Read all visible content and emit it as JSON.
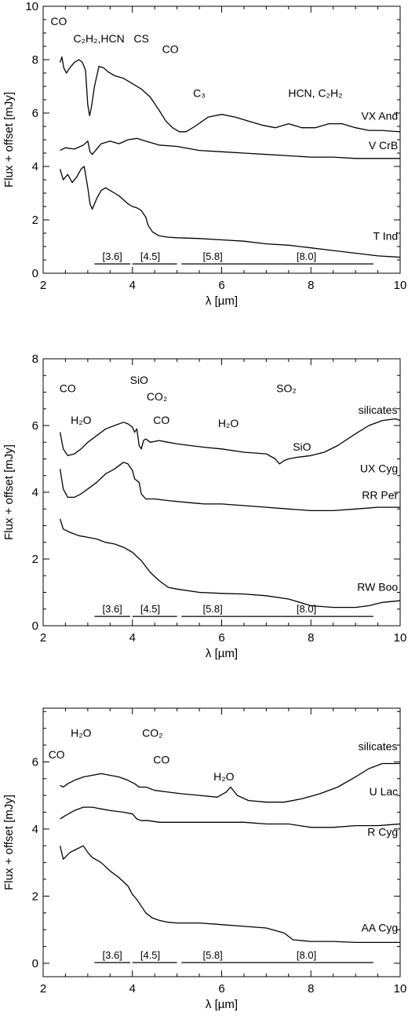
{
  "chart_data": [
    {
      "type": "line",
      "xlabel": "λ [µm]",
      "ylabel": "Flux + offset [mJy]",
      "xlim": [
        2,
        10
      ],
      "ylim": [
        0,
        10
      ],
      "x_ticks": [
        2,
        4,
        6,
        8,
        10
      ],
      "y_ticks": [
        0,
        2,
        4,
        6,
        8,
        10
      ],
      "series": [
        {
          "name": "VX And",
          "x": [
            2.38,
            2.42,
            2.46,
            2.52,
            2.6,
            2.7,
            2.8,
            2.88,
            2.95,
            3.0,
            3.04,
            3.08,
            3.15,
            3.25,
            3.35,
            3.45,
            3.6,
            3.8,
            4.0,
            4.2,
            4.4,
            4.6,
            4.75,
            4.9,
            5.05,
            5.2,
            5.4,
            5.7,
            6.0,
            6.3,
            6.6,
            6.9,
            7.2,
            7.5,
            7.8,
            8.1,
            8.4,
            8.7,
            9.0,
            9.3,
            9.6,
            9.8,
            10.0
          ],
          "y": [
            7.9,
            8.1,
            7.7,
            7.5,
            7.7,
            7.9,
            8.0,
            7.9,
            7.6,
            6.3,
            5.9,
            6.2,
            7.0,
            7.75,
            7.7,
            7.55,
            7.4,
            7.3,
            7.1,
            6.9,
            6.6,
            6.1,
            5.7,
            5.45,
            5.3,
            5.3,
            5.5,
            5.85,
            5.95,
            5.85,
            5.7,
            5.55,
            5.45,
            5.6,
            5.45,
            5.45,
            5.6,
            5.6,
            5.45,
            5.35,
            5.35,
            5.32,
            5.3
          ]
        },
        {
          "name": "V CrB",
          "x": [
            2.38,
            2.5,
            2.7,
            2.9,
            3.0,
            3.05,
            3.1,
            3.3,
            3.5,
            3.7,
            3.9,
            4.1,
            4.3,
            4.6,
            5.0,
            5.5,
            6.0,
            6.5,
            7.0,
            7.5,
            8.0,
            8.5,
            9.0,
            9.5,
            10.0
          ],
          "y": [
            4.6,
            4.7,
            4.65,
            4.8,
            4.95,
            4.55,
            4.45,
            4.85,
            4.95,
            4.85,
            5.0,
            5.05,
            4.95,
            4.8,
            4.75,
            4.6,
            4.55,
            4.5,
            4.45,
            4.4,
            4.35,
            4.35,
            4.3,
            4.3,
            4.3
          ]
        },
        {
          "name": "T Ind",
          "x": [
            2.38,
            2.45,
            2.55,
            2.65,
            2.75,
            2.85,
            2.92,
            3.0,
            3.05,
            3.1,
            3.2,
            3.3,
            3.4,
            3.5,
            3.6,
            3.7,
            3.8,
            3.9,
            4.0,
            4.1,
            4.2,
            4.3,
            4.35,
            4.45,
            4.6,
            4.8,
            5.0,
            5.5,
            6.0,
            6.5,
            7.0,
            7.5,
            8.0,
            8.5,
            9.0,
            9.5,
            10.0
          ],
          "y": [
            3.9,
            3.5,
            3.7,
            3.4,
            3.6,
            3.9,
            4.0,
            3.2,
            2.6,
            2.4,
            2.8,
            3.1,
            3.2,
            3.1,
            3.0,
            2.9,
            2.75,
            2.6,
            2.5,
            2.45,
            2.35,
            2.1,
            1.8,
            1.55,
            1.4,
            1.35,
            1.33,
            1.3,
            1.25,
            1.2,
            1.1,
            1.05,
            0.95,
            0.85,
            0.75,
            0.65,
            0.6
          ]
        }
      ],
      "annotations": [
        {
          "text": "CO",
          "x": 2.35,
          "y": 9.3
        },
        {
          "text": "C₂H₂,HCN",
          "x": 3.25,
          "y": 8.65
        },
        {
          "text": "CS",
          "x": 4.2,
          "y": 8.65
        },
        {
          "text": "CO",
          "x": 4.85,
          "y": 8.25
        },
        {
          "text": "C₃",
          "x": 5.5,
          "y": 6.6
        },
        {
          "text": "HCN, C₂H₂",
          "x": 8.1,
          "y": 6.6
        },
        {
          "text": "VX And",
          "x": 9.95,
          "y": 5.75
        },
        {
          "text": "V CrB",
          "x": 9.95,
          "y": 4.65
        },
        {
          "text": "T Ind",
          "x": 9.95,
          "y": 1.25
        }
      ],
      "bandpasses": [
        {
          "label": "[3.6]",
          "x0": 3.15,
          "x1": 3.95,
          "label_x": 3.55
        },
        {
          "label": "[4.5]",
          "x0": 4.0,
          "x1": 5.0,
          "label_x": 4.4
        },
        {
          "label": "[5.8]",
          "x0": 5.1,
          "x1": 6.5,
          "label_x": 5.8
        },
        {
          "label": "[8.0]",
          "x0": 6.5,
          "x1": 9.4,
          "label_x": 7.9
        }
      ]
    },
    {
      "type": "line",
      "xlabel": "λ [µm]",
      "ylabel": "Flux + offset [mJy]",
      "xlim": [
        2,
        10
      ],
      "ylim": [
        0,
        8
      ],
      "x_ticks": [
        2,
        4,
        6,
        8,
        10
      ],
      "y_ticks": [
        0,
        2,
        4,
        6,
        8
      ],
      "series": [
        {
          "name": "UX Cyg",
          "x": [
            2.38,
            2.45,
            2.55,
            2.7,
            2.85,
            3.0,
            3.2,
            3.4,
            3.6,
            3.8,
            3.9,
            4.0,
            4.05,
            4.1,
            4.15,
            4.2,
            4.25,
            4.3,
            4.4,
            4.6,
            4.8,
            5.0,
            5.3,
            5.6,
            6.0,
            6.5,
            7.0,
            7.2,
            7.3,
            7.4,
            7.5,
            7.7,
            8.0,
            8.3,
            8.6,
            9.0,
            9.3,
            9.6,
            9.9,
            10.0
          ],
          "y": [
            5.8,
            5.3,
            5.1,
            5.15,
            5.3,
            5.5,
            5.7,
            5.9,
            6.0,
            6.1,
            6.05,
            5.95,
            5.8,
            5.9,
            5.4,
            5.3,
            5.55,
            5.6,
            5.5,
            5.55,
            5.5,
            5.45,
            5.4,
            5.35,
            5.3,
            5.2,
            5.15,
            5.0,
            4.85,
            4.95,
            5.0,
            5.05,
            5.1,
            5.2,
            5.4,
            5.75,
            6.0,
            6.15,
            6.2,
            6.15
          ]
        },
        {
          "name": "RR Per",
          "x": [
            2.38,
            2.45,
            2.55,
            2.7,
            2.85,
            3.0,
            3.2,
            3.4,
            3.6,
            3.8,
            3.9,
            4.0,
            4.05,
            4.15,
            4.2,
            4.3,
            4.5,
            4.8,
            5.2,
            5.6,
            6.0,
            6.5,
            7.0,
            7.5,
            8.0,
            8.5,
            9.0,
            9.5,
            10.0
          ],
          "y": [
            4.7,
            4.1,
            3.85,
            3.85,
            3.95,
            4.1,
            4.3,
            4.55,
            4.7,
            4.9,
            4.85,
            4.65,
            4.4,
            4.3,
            3.95,
            3.8,
            3.8,
            3.75,
            3.7,
            3.65,
            3.65,
            3.6,
            3.55,
            3.5,
            3.45,
            3.45,
            3.5,
            3.55,
            3.55
          ]
        },
        {
          "name": "RW Boo",
          "x": [
            2.38,
            2.45,
            2.6,
            2.8,
            3.0,
            3.2,
            3.4,
            3.6,
            3.8,
            4.0,
            4.2,
            4.4,
            4.6,
            4.8,
            5.0,
            5.5,
            6.0,
            6.5,
            7.0,
            7.5,
            8.0,
            8.5,
            9.0,
            9.3,
            9.6,
            10.0
          ],
          "y": [
            3.2,
            2.9,
            2.8,
            2.7,
            2.65,
            2.6,
            2.5,
            2.45,
            2.35,
            2.2,
            1.95,
            1.6,
            1.35,
            1.15,
            1.1,
            1.0,
            0.97,
            0.95,
            0.9,
            0.8,
            0.6,
            0.55,
            0.55,
            0.6,
            0.7,
            0.75
          ]
        }
      ],
      "annotations": [
        {
          "text": "CO",
          "x": 2.55,
          "y": 7.0
        },
        {
          "text": "H₂O",
          "x": 2.85,
          "y": 6.05
        },
        {
          "text": "SiO",
          "x": 4.15,
          "y": 7.25
        },
        {
          "text": "CO₂",
          "x": 4.55,
          "y": 6.75
        },
        {
          "text": "CO",
          "x": 4.65,
          "y": 6.05
        },
        {
          "text": "H₂O",
          "x": 6.15,
          "y": 5.95
        },
        {
          "text": "SO₂",
          "x": 7.45,
          "y": 7.0
        },
        {
          "text": "SiO",
          "x": 7.8,
          "y": 5.25
        },
        {
          "text": "silicates",
          "x": 9.5,
          "y": 6.35
        },
        {
          "text": "UX Cyg",
          "x": 9.95,
          "y": 4.6
        },
        {
          "text": "RR Per",
          "x": 9.95,
          "y": 3.8
        },
        {
          "text": "RW Boo",
          "x": 9.95,
          "y": 1.05
        }
      ],
      "bandpasses": [
        {
          "label": "[3.6]",
          "x0": 3.15,
          "x1": 3.95,
          "label_x": 3.55
        },
        {
          "label": "[4.5]",
          "x0": 4.0,
          "x1": 5.0,
          "label_x": 4.4
        },
        {
          "label": "[5.8]",
          "x0": 5.1,
          "x1": 6.5,
          "label_x": 5.8
        },
        {
          "label": "[8.0]",
          "x0": 6.5,
          "x1": 9.4,
          "label_x": 7.9
        }
      ]
    },
    {
      "type": "line",
      "xlabel": "λ [µm]",
      "ylabel": "Flux + offset [mJy]",
      "xlim": [
        2,
        10
      ],
      "ylim": [
        -0.4,
        7.6
      ],
      "x_ticks": [
        2,
        4,
        6,
        8,
        10
      ],
      "y_ticks": [
        0,
        2,
        4,
        6
      ],
      "series": [
        {
          "name": "U Lac",
          "x": [
            2.38,
            2.45,
            2.55,
            2.7,
            2.9,
            3.1,
            3.3,
            3.5,
            3.7,
            3.9,
            4.05,
            4.15,
            4.3,
            4.5,
            4.8,
            5.1,
            5.5,
            5.9,
            6.1,
            6.2,
            6.35,
            6.6,
            7.0,
            7.4,
            7.8,
            8.2,
            8.6,
            9.0,
            9.3,
            9.6,
            10.0
          ],
          "y": [
            5.3,
            5.25,
            5.35,
            5.45,
            5.55,
            5.6,
            5.65,
            5.6,
            5.55,
            5.45,
            5.35,
            5.25,
            5.25,
            5.15,
            5.1,
            5.05,
            5.0,
            4.95,
            5.1,
            5.25,
            5.0,
            4.85,
            4.8,
            4.8,
            4.9,
            5.05,
            5.25,
            5.55,
            5.8,
            5.95,
            5.95
          ]
        },
        {
          "name": "R Cyg",
          "x": [
            2.38,
            2.5,
            2.7,
            2.9,
            3.1,
            3.3,
            3.5,
            3.8,
            4.0,
            4.1,
            4.2,
            4.35,
            4.6,
            5.0,
            5.5,
            6.0,
            6.5,
            7.0,
            7.5,
            8.0,
            8.5,
            9.0,
            9.5,
            10.0
          ],
          "y": [
            4.3,
            4.4,
            4.55,
            4.65,
            4.65,
            4.6,
            4.55,
            4.5,
            4.45,
            4.3,
            4.25,
            4.25,
            4.2,
            4.2,
            4.2,
            4.2,
            4.2,
            4.15,
            4.15,
            4.05,
            4.05,
            4.1,
            4.1,
            4.15
          ]
        },
        {
          "name": "AA Cyg",
          "x": [
            2.38,
            2.45,
            2.6,
            2.75,
            2.9,
            3.0,
            3.1,
            3.3,
            3.5,
            3.7,
            3.9,
            4.0,
            4.1,
            4.2,
            4.3,
            4.45,
            4.6,
            4.8,
            5.0,
            5.5,
            6.0,
            6.5,
            7.0,
            7.4,
            7.6,
            8.0,
            8.5,
            9.0,
            9.5,
            10.0
          ],
          "y": [
            3.5,
            3.1,
            3.3,
            3.4,
            3.5,
            3.3,
            3.15,
            3.0,
            2.75,
            2.55,
            2.3,
            2.05,
            1.9,
            1.7,
            1.5,
            1.35,
            1.28,
            1.22,
            1.2,
            1.2,
            1.15,
            1.1,
            1.05,
            0.9,
            0.7,
            0.65,
            0.65,
            0.62,
            0.62,
            0.62
          ]
        }
      ],
      "annotations": [
        {
          "text": "CO",
          "x": 2.3,
          "y": 6.1
        },
        {
          "text": "H₂O",
          "x": 2.85,
          "y": 6.75
        },
        {
          "text": "CO₂",
          "x": 4.45,
          "y": 6.75
        },
        {
          "text": "CO",
          "x": 4.65,
          "y": 5.95
        },
        {
          "text": "H₂O",
          "x": 6.05,
          "y": 5.45
        },
        {
          "text": "silicates",
          "x": 9.5,
          "y": 6.35
        },
        {
          "text": "U Lac",
          "x": 9.95,
          "y": 5.0
        },
        {
          "text": "R Cyg",
          "x": 9.95,
          "y": 3.8
        },
        {
          "text": "AA Cyg",
          "x": 9.95,
          "y": 0.95
        }
      ],
      "bandpasses": [
        {
          "label": "[3.6]",
          "x0": 3.15,
          "x1": 3.95,
          "label_x": 3.55
        },
        {
          "label": "[4.5]",
          "x0": 4.0,
          "x1": 5.0,
          "label_x": 4.4
        },
        {
          "label": "[5.8]",
          "x0": 5.1,
          "x1": 6.5,
          "label_x": 5.8
        },
        {
          "label": "[8.0]",
          "x0": 6.5,
          "x1": 9.4,
          "label_x": 7.9
        }
      ]
    }
  ]
}
